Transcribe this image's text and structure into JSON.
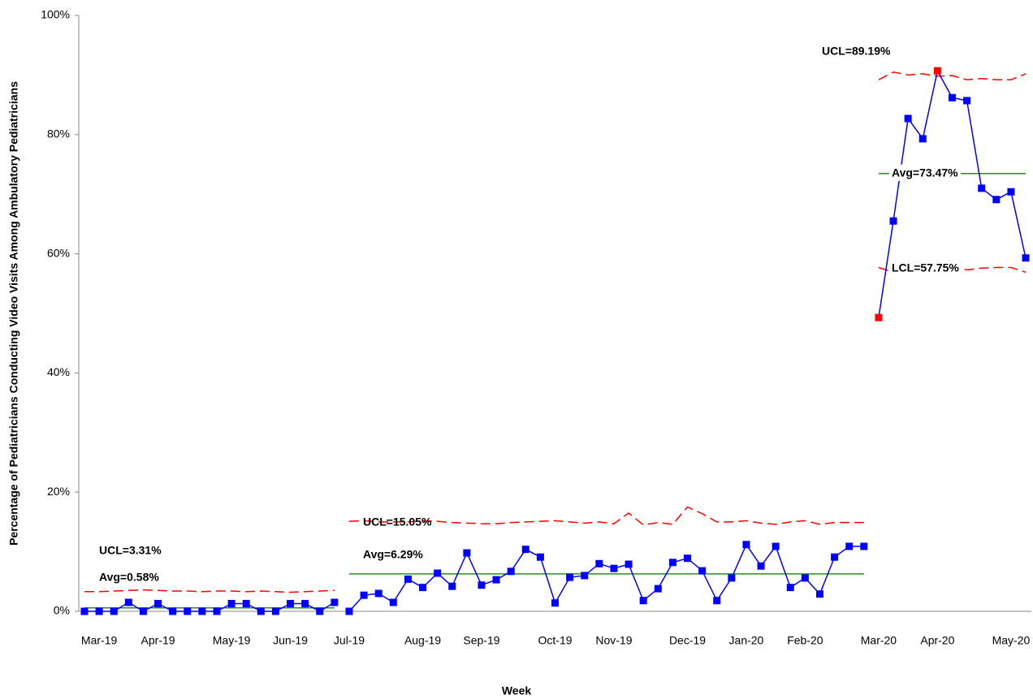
{
  "chart_data": {
    "type": "line",
    "ylabel": "Percentage of  Pediatricians Conducting Video Visits Among Ambulatory Pediatricians",
    "xlabel": "Week",
    "categories": [
      null,
      "Mar-19",
      null,
      null,
      null,
      "Apr-19",
      null,
      null,
      null,
      null,
      "May-19",
      null,
      null,
      null,
      "Jun-19",
      null,
      null,
      null,
      "Jul-19",
      null,
      null,
      null,
      null,
      "Aug-19",
      null,
      null,
      null,
      "Sep-19",
      null,
      null,
      null,
      null,
      "Oct-19",
      null,
      null,
      null,
      "Nov-19",
      null,
      null,
      null,
      null,
      "Dec-19",
      null,
      null,
      null,
      "Jan-20",
      null,
      null,
      null,
      "Feb-20",
      null,
      null,
      null,
      null,
      "Mar-20",
      null,
      null,
      null,
      "Apr-20",
      null,
      null,
      null,
      null,
      "May-20",
      null
    ],
    "ylim": [
      0,
      100
    ],
    "yticks": [
      {
        "value": 0,
        "label": "0%"
      },
      {
        "value": 20,
        "label": "20%"
      },
      {
        "value": 40,
        "label": "40%"
      },
      {
        "value": 60,
        "label": "60%"
      },
      {
        "value": 80,
        "label": "80%"
      },
      {
        "value": 100,
        "label": "100%"
      }
    ],
    "color": "#0000ff",
    "signal_color": "#ff0000",
    "avg_color": "#2e8b22",
    "limit_color": "#ff0000",
    "phases": [
      {
        "start": 0,
        "values": [
          0,
          0,
          0,
          1.5,
          0,
          1.3,
          0,
          0,
          0,
          0,
          1.3,
          1.3,
          0,
          0,
          1.3,
          1.3,
          0,
          1.5
        ],
        "ucl": [
          3.3,
          3.3,
          3.4,
          3.5,
          3.6,
          3.5,
          3.4,
          3.4,
          3.3,
          3.4,
          3.4,
          3.3,
          3.4,
          3.3,
          3.2,
          3.3,
          3.4,
          3.5
        ],
        "avg": 0.58,
        "ucl_label": "UCL=3.31%",
        "avg_label": "Avg=0.58%"
      },
      {
        "start": 18,
        "values": [
          0,
          2.7,
          3.0,
          1.5,
          5.4,
          4.0,
          6.4,
          4.2,
          9.8,
          4.4,
          5.3,
          6.7,
          10.4,
          9.1,
          1.4,
          5.7,
          6.0,
          8.0,
          7.2,
          7.9,
          1.8,
          3.8,
          8.2,
          8.9,
          6.8,
          1.8,
          5.6,
          11.2,
          7.6,
          10.9,
          4.0,
          5.6,
          2.9,
          9.1,
          10.9,
          10.9
        ],
        "ucl": [
          15.1,
          15.2,
          15.0,
          15.0,
          15.0,
          15.2,
          15.1,
          14.9,
          14.8,
          14.7,
          14.7,
          14.9,
          15.0,
          15.1,
          15.2,
          15.0,
          14.8,
          15.0,
          14.7,
          16.5,
          14.5,
          14.9,
          14.6,
          17.5,
          16.4,
          15.0,
          15.0,
          15.2,
          14.8,
          14.6,
          15.0,
          15.2,
          14.6,
          14.9,
          14.9,
          14.9
        ],
        "avg": 6.29,
        "ucl_label": "UCL=15.05%",
        "avg_label": "Avg=6.29%"
      },
      {
        "start": 54,
        "values": [
          49.3,
          65.5,
          82.7,
          79.3,
          90.7,
          86.2,
          85.7,
          71.0,
          69.1,
          70.4,
          59.3
        ],
        "signals": [
          0,
          4
        ],
        "ucl": [
          89.2,
          90.5,
          90.0,
          90.2,
          89.8,
          89.9,
          89.2,
          89.4,
          89.2,
          89.2,
          90.2
        ],
        "lcl": [
          57.7,
          56.9,
          57.3,
          57.3,
          57.9,
          58.0,
          57.3,
          57.6,
          57.7,
          57.7,
          56.9
        ],
        "avg": 73.47,
        "ucl_label": "UCL=89.19%",
        "avg_label": "Avg=73.47%",
        "lcl_label": "LCL=57.75%"
      }
    ]
  }
}
